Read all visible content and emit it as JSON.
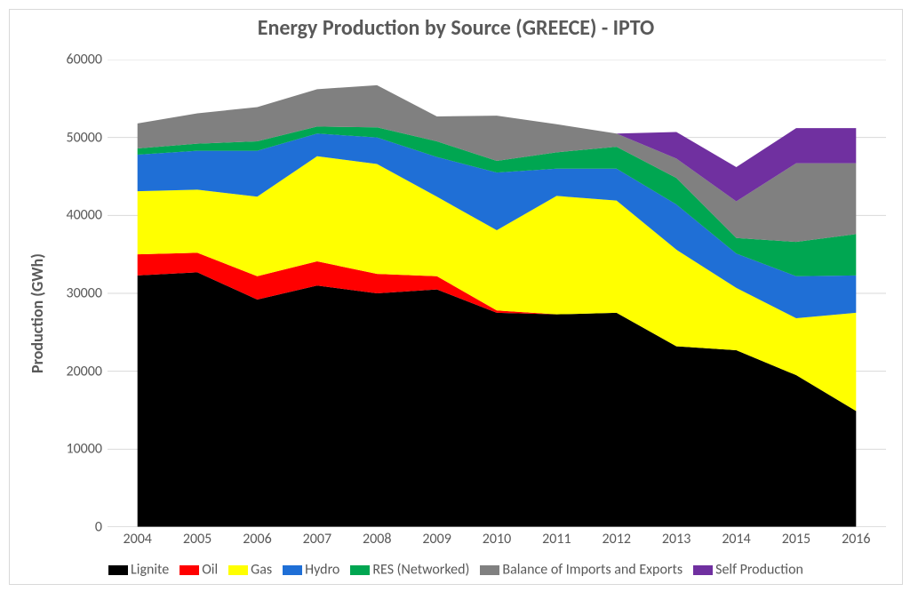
{
  "chart": {
    "type": "stacked-area",
    "title": "Energy Production by Source (GREECE) - IPTO",
    "title_fontsize": 24,
    "title_fontweight": "bold",
    "title_color": "#595959",
    "ylabel": "Production (GWh)",
    "ylabel_fontsize": 18,
    "ylabel_fontweight": "bold",
    "ylabel_color": "#595959",
    "tick_fontsize": 16,
    "tick_color": "#595959",
    "legend_fontsize": 16,
    "legend_color": "#595959",
    "background_color": "#ffffff",
    "plot_area_bg": "#ffffff",
    "grid_color": "#d9d9d9",
    "axis_line_color": "#bfbfbf",
    "border_color": "#d9d9d9",
    "years": [
      2004,
      2005,
      2006,
      2007,
      2008,
      2009,
      2010,
      2011,
      2012,
      2013,
      2014,
      2015,
      2016
    ],
    "ylim": [
      0,
      60000
    ],
    "ytick_step": 10000,
    "series": [
      {
        "name": "Lignite",
        "color": "#000000",
        "values": [
          32300,
          32700,
          29200,
          31000,
          30000,
          30500,
          27500,
          27300,
          27500,
          23200,
          22700,
          19500,
          14900
        ]
      },
      {
        "name": "Oil",
        "color": "#ff0000",
        "values": [
          2700,
          2500,
          3000,
          3100,
          2500,
          1700,
          300,
          0,
          0,
          0,
          0,
          0,
          0
        ]
      },
      {
        "name": "Gas",
        "color": "#ffff00",
        "values": [
          8100,
          8100,
          10200,
          13500,
          14100,
          10200,
          10300,
          15200,
          14400,
          12400,
          8000,
          7300,
          12600
        ]
      },
      {
        "name": "Hydro",
        "color": "#1f6fd6",
        "values": [
          4700,
          5000,
          5900,
          2900,
          3400,
          5100,
          7400,
          3500,
          4100,
          5800,
          4400,
          5400,
          4800
        ]
      },
      {
        "name": "RES (Networked)",
        "color": "#00a651",
        "values": [
          800,
          900,
          1200,
          900,
          1300,
          2000,
          1500,
          2100,
          2800,
          3400,
          2000,
          4400,
          5300
        ]
      },
      {
        "name": "Balance of Imports and Exports",
        "color": "#808080",
        "values": [
          3200,
          3900,
          4400,
          4800,
          5400,
          3200,
          5800,
          3600,
          1700,
          2500,
          4700,
          10100,
          9100
        ]
      },
      {
        "name": "Self Production",
        "color": "#7030a0",
        "values": [
          0,
          0,
          0,
          0,
          0,
          0,
          0,
          0,
          0,
          3400,
          4400,
          4500,
          4500
        ]
      }
    ]
  }
}
